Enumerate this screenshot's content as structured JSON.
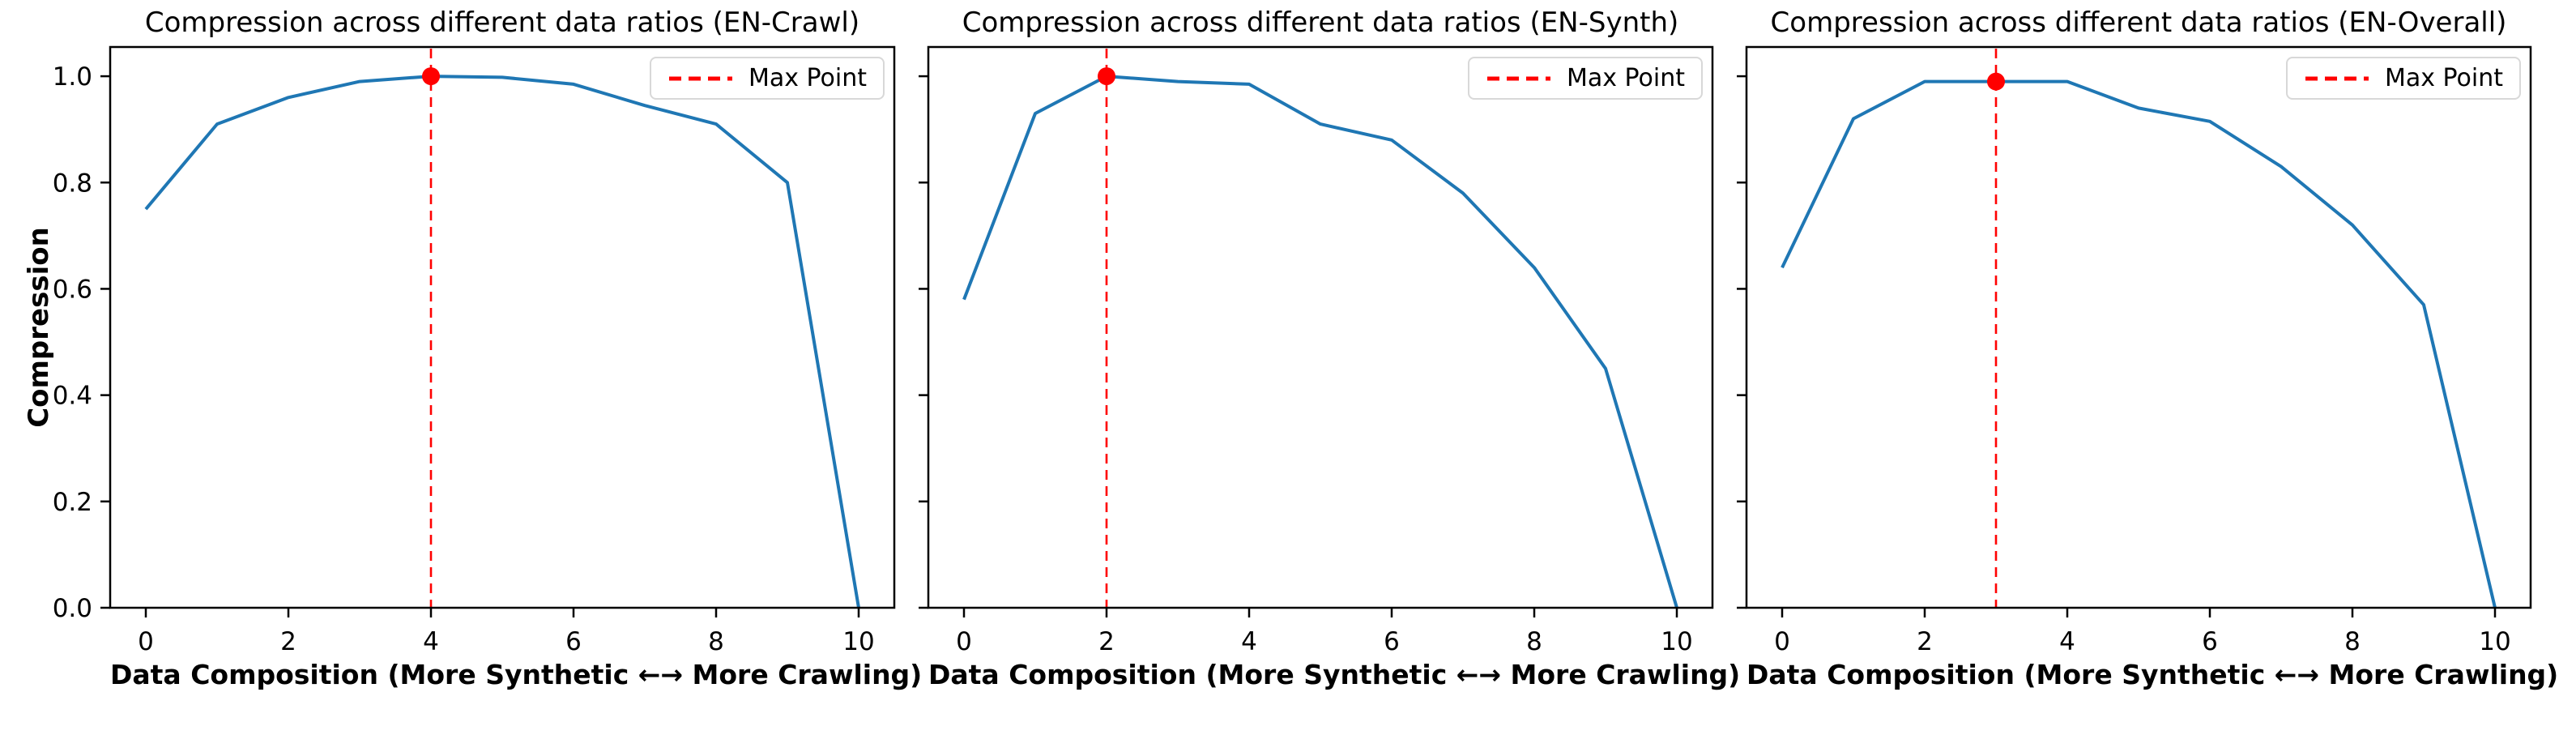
{
  "figure": {
    "background": "#ffffff",
    "colors": {
      "line": "#1f77b4",
      "max": "#ff0000",
      "spine": "#000000",
      "tick": "#000000",
      "legend_border": "#d8d8d8",
      "legend_bg": "#ffffff",
      "text": "#000000"
    }
  },
  "chart_data": [
    {
      "type": "line",
      "title": "Compression across different data ratios (EN-Crawl)",
      "xlabel": "Data Composition (More Synthetic ←→ More Crawling)",
      "ylabel": "Compression",
      "x": [
        0,
        1,
        2,
        3,
        4,
        5,
        6,
        7,
        8,
        9,
        10
      ],
      "values": [
        0.75,
        0.91,
        0.96,
        0.99,
        1.0,
        0.998,
        0.985,
        0.945,
        0.91,
        0.8,
        0.0
      ],
      "max_point": {
        "x": 4,
        "y": 1.0
      },
      "legend": [
        "Max Point"
      ],
      "legend_position": "upper right",
      "xticks": [
        "0",
        "2",
        "4",
        "6",
        "8",
        "10"
      ],
      "yticks": [
        "0.0",
        "0.2",
        "0.4",
        "0.6",
        "0.8",
        "1.0"
      ],
      "show_ytick_labels": true,
      "xlim": [
        -0.5,
        10.5
      ],
      "ylim": [
        0,
        1.055
      ],
      "grid": false
    },
    {
      "type": "line",
      "title": "Compression across different data ratios (EN-Synth)",
      "xlabel": "Data Composition (More Synthetic ←→ More Crawling)",
      "ylabel": "",
      "x": [
        0,
        1,
        2,
        3,
        4,
        5,
        6,
        7,
        8,
        9,
        10
      ],
      "values": [
        0.58,
        0.93,
        1.0,
        0.99,
        0.985,
        0.91,
        0.88,
        0.78,
        0.64,
        0.45,
        0.0
      ],
      "max_point": {
        "x": 2,
        "y": 1.0
      },
      "legend": [
        "Max Point"
      ],
      "legend_position": "upper right",
      "xticks": [
        "0",
        "2",
        "4",
        "6",
        "8",
        "10"
      ],
      "yticks": [
        "0.0",
        "0.2",
        "0.4",
        "0.6",
        "0.8",
        "1.0"
      ],
      "show_ytick_labels": false,
      "xlim": [
        -0.5,
        10.5
      ],
      "ylim": [
        0,
        1.055
      ],
      "grid": false
    },
    {
      "type": "line",
      "title": "Compression across different data ratios (EN-Overall)",
      "xlabel": "Data Composition (More Synthetic ←→ More Crawling)",
      "ylabel": "",
      "x": [
        0,
        1,
        2,
        3,
        4,
        5,
        6,
        7,
        8,
        9,
        10
      ],
      "values": [
        0.64,
        0.92,
        0.99,
        0.99,
        0.99,
        0.94,
        0.915,
        0.83,
        0.72,
        0.57,
        0.0
      ],
      "max_point": {
        "x": 3,
        "y": 0.99
      },
      "legend": [
        "Max Point"
      ],
      "legend_position": "upper right",
      "xticks": [
        "0",
        "2",
        "4",
        "6",
        "8",
        "10"
      ],
      "yticks": [
        "0.0",
        "0.2",
        "0.4",
        "0.6",
        "0.8",
        "1.0"
      ],
      "show_ytick_labels": false,
      "xlim": [
        -0.5,
        10.5
      ],
      "ylim": [
        0,
        1.055
      ],
      "grid": false
    }
  ]
}
